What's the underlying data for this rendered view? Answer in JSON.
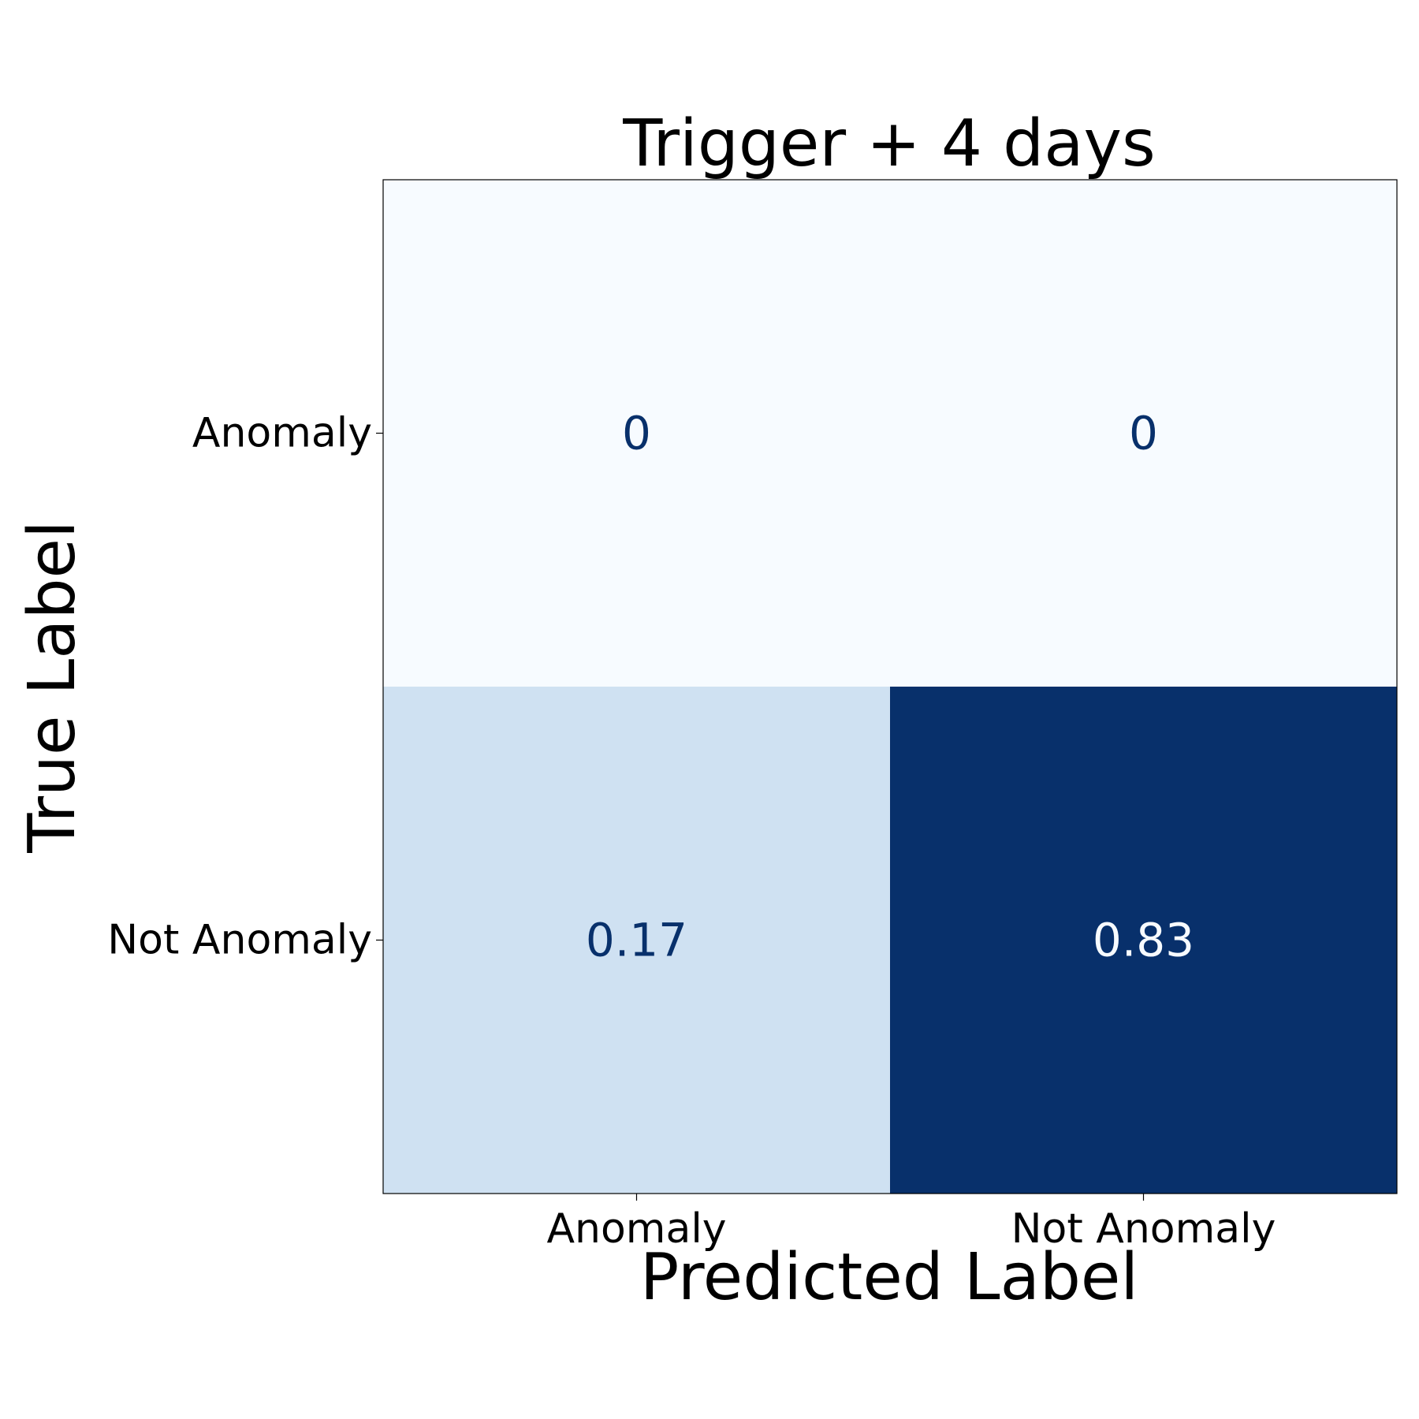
{
  "chart_data": {
    "type": "heatmap",
    "title": "Trigger + 4 days",
    "xlabel": "Predicted Label",
    "ylabel": "True Label",
    "x_categories": [
      "Anomaly",
      "Not Anomaly"
    ],
    "y_categories": [
      "Anomaly",
      "Not Anomaly"
    ],
    "values": [
      [
        0,
        0
      ],
      [
        0.17,
        0.83
      ]
    ],
    "value_labels": [
      [
        "0",
        "0"
      ],
      [
        "0.17",
        "0.83"
      ]
    ],
    "colormap": "Blues",
    "color_range": [
      0,
      0.83
    ],
    "colorbar": false,
    "colors": {
      "low": "#f7fbff",
      "high": "#08306b",
      "text_on_light": "#08306b",
      "text_on_dark": "#f7fbff"
    }
  }
}
